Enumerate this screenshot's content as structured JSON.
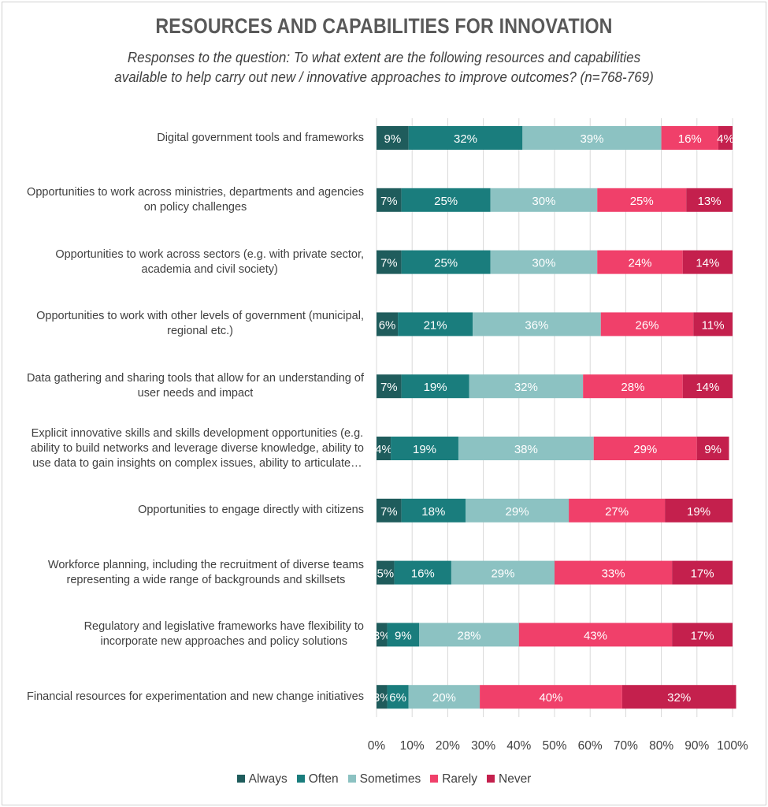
{
  "chart_data": {
    "type": "bar",
    "orientation": "horizontal",
    "stacked": true,
    "percent": true,
    "title": "RESOURCES AND CAPABILITIES FOR INNOVATION",
    "subtitle": [
      "Responses to the question: To what extent are the following resources and capabilities",
      "available to help carry out new / innovative approaches to improve outcomes? (n=768-769)"
    ],
    "categories": [
      "Digital government tools and frameworks",
      "Opportunities to work across ministries, departments and agencies on policy challenges",
      "Opportunities to work across sectors (e.g. with private sector, academia and civil society)",
      "Opportunities to work with other levels of government (municipal, regional etc.)",
      "Data gathering and sharing tools that allow for an understanding of user needs and impact",
      "Explicit innovative skills and skills development opportunities (e.g. ability to build networks and leverage diverse knowledge, ability to use data to gain insights on complex issues, ability to articulate…",
      "Opportunities to engage directly with citizens",
      "Workforce planning, including the recruitment of diverse teams representing a wide range of backgrounds and skillsets",
      "Regulatory and legislative frameworks have flexibility to incorporate new approaches and policy solutions",
      "Financial resources for experimentation and new change initiatives"
    ],
    "category_lines": [
      [
        "Digital government tools and frameworks"
      ],
      [
        "Opportunities to work across ministries, departments and agencies",
        "on policy challenges"
      ],
      [
        "Opportunities to work across sectors (e.g. with private sector,",
        "academia and civil society)"
      ],
      [
        "Opportunities to work with other levels of government (municipal,",
        "regional etc.)"
      ],
      [
        "Data gathering and sharing tools that allow for an understanding of",
        "user needs and impact"
      ],
      [
        "Explicit innovative skills and skills development opportunities (e.g.",
        "ability to build networks and leverage diverse knowledge, ability to",
        "use data to gain insights on complex issues, ability to articulate…"
      ],
      [
        "Opportunities to engage directly with citizens"
      ],
      [
        "Workforce planning, including the recruitment of diverse teams",
        "representing a wide range of backgrounds and skillsets"
      ],
      [
        "Regulatory and legislative frameworks have flexibility to",
        "incorporate new approaches and policy solutions"
      ],
      [
        "Financial resources for experimentation and new change initiatives"
      ]
    ],
    "series": [
      {
        "name": "Always",
        "color": "#1f5c5c",
        "values": [
          9,
          7,
          7,
          6,
          7,
          4,
          7,
          5,
          3,
          3
        ]
      },
      {
        "name": "Often",
        "color": "#1a7d7d",
        "values": [
          32,
          25,
          25,
          21,
          19,
          19,
          18,
          16,
          9,
          6
        ]
      },
      {
        "name": "Sometimes",
        "color": "#8cc2c2",
        "values": [
          39,
          30,
          30,
          36,
          32,
          38,
          29,
          29,
          28,
          20
        ]
      },
      {
        "name": "Rarely",
        "color": "#f0406a",
        "values": [
          16,
          25,
          24,
          26,
          28,
          29,
          27,
          33,
          43,
          40
        ]
      },
      {
        "name": "Never",
        "color": "#c4204d",
        "values": [
          4,
          13,
          14,
          11,
          14,
          9,
          19,
          17,
          17,
          32
        ]
      }
    ],
    "data_labels": [
      [
        "9%",
        "32%",
        "39%",
        "16%",
        "4%"
      ],
      [
        "7%",
        "25%",
        "30%",
        "25%",
        "13%"
      ],
      [
        "7%",
        "25%",
        "30%",
        "24%",
        "14%"
      ],
      [
        "6%",
        "21%",
        "36%",
        "26%",
        "11%"
      ],
      [
        "7%",
        "19%",
        "32%",
        "28%",
        "14%"
      ],
      [
        "4%",
        "19%",
        "38%",
        "29%",
        "9%"
      ],
      [
        "7%",
        "18%",
        "29%",
        "27%",
        "19%"
      ],
      [
        "5%",
        "16%",
        "29%",
        "33%",
        "17%"
      ],
      [
        "3%",
        "9%",
        "28%",
        "43%",
        "17%"
      ],
      [
        "3%",
        "6%",
        "20%",
        "40%",
        "32%"
      ]
    ],
    "xlim": [
      0,
      100
    ],
    "xticks": [
      "0%",
      "10%",
      "20%",
      "30%",
      "40%",
      "50%",
      "60%",
      "70%",
      "80%",
      "90%",
      "100%"
    ],
    "grid": "vertical",
    "legend": "bottom"
  }
}
